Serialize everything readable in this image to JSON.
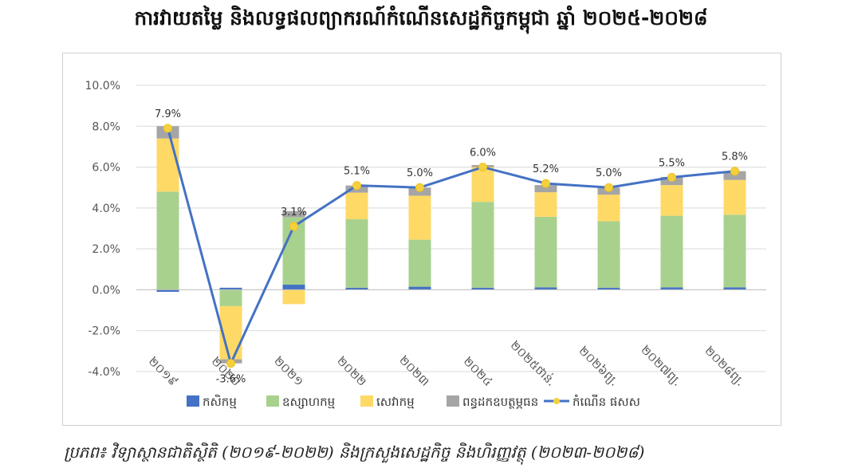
{
  "title": "ការវាយតម្លៃ និងលទ្ធផលព្យាករណ៍កំណើនសេដ្ឋកិច្ចកម្ពុជា ឆ្នាំ ២០២៥-២០២៨",
  "source": "ប្រភព៖ វិទ្យាស្ថានជាតិស្ថិតិ (២០១៩-២០២២) និងក្រសួងសេដ្ឋកិច្ច និងហិរញ្ញវត្ថុ (២០២៣-២០២៨)",
  "chart_data": {
    "type": "bar",
    "stacked": true,
    "categories": [
      "២០១៩",
      "២០២០",
      "២០២១",
      "២០២២",
      "២០២៣",
      "២០២៤",
      "២០២៥ថាន់.",
      "២០២៦ព្យ.",
      "២០២៧ព្យ.",
      "២០២៨ព្យ."
    ],
    "ylim": [
      -4.0,
      10.0
    ],
    "yticks": [
      "-4.0%",
      "-2.0%",
      "0.0%",
      "2.0%",
      "4.0%",
      "6.0%",
      "8.0%",
      "10.0%"
    ],
    "ytick_values": [
      -4,
      -2,
      0,
      2,
      4,
      6,
      8,
      10
    ],
    "grid": true,
    "legend_position": "bottom",
    "series": [
      {
        "name": "កសិកម្ម",
        "color": "#4472C4",
        "values": [
          -0.1,
          0.1,
          0.25,
          0.1,
          0.15,
          0.1,
          0.12,
          0.1,
          0.12,
          0.12
        ]
      },
      {
        "name": "ឧស្សាហកម្ម",
        "color": "#A9D18E",
        "values": [
          4.8,
          -0.8,
          3.3,
          3.35,
          2.3,
          4.2,
          3.45,
          3.25,
          3.5,
          3.55
        ]
      },
      {
        "name": "សេវាកម្ម",
        "color": "#FFD966",
        "values": [
          2.6,
          -2.6,
          -0.7,
          1.3,
          2.15,
          1.7,
          1.2,
          1.3,
          1.5,
          1.7
        ]
      },
      {
        "name": "ពន្ធដកឧបត្ថម្ភធន",
        "color": "#A5A5A5",
        "values": [
          0.6,
          -0.2,
          0.3,
          0.35,
          0.4,
          0.1,
          0.35,
          0.35,
          0.4,
          0.43
        ]
      }
    ],
    "line": {
      "name": "កំណើន ផសស",
      "color": "#4472C4",
      "marker_color": "#F4D03F",
      "values": [
        7.9,
        -3.6,
        3.1,
        5.1,
        5.0,
        6.0,
        5.2,
        5.0,
        5.5,
        5.8
      ],
      "labels": [
        "7.9%",
        "-3.6%",
        "3.1%",
        "5.1%",
        "5.0%",
        "6.0%",
        "5.2%",
        "5.0%",
        "5.5%",
        "5.8%"
      ]
    }
  }
}
